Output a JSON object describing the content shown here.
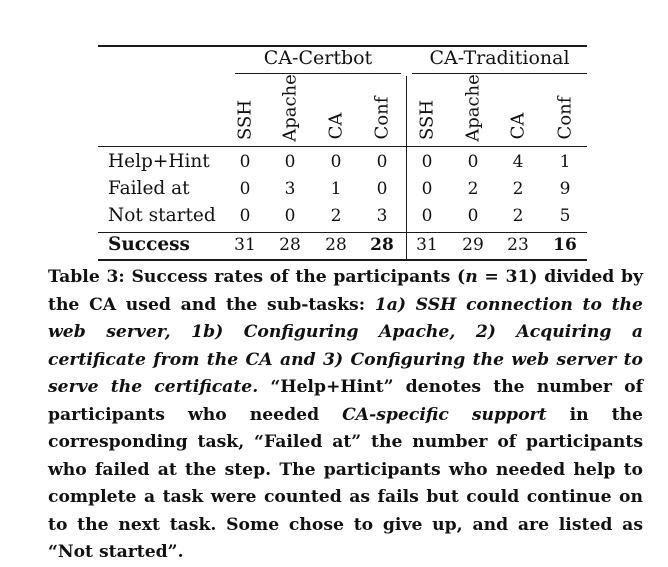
{
  "table": {
    "group_headers": [
      "CA-Certbot",
      "CA-Traditional"
    ],
    "columns": [
      "SSH",
      "Apache",
      "CA",
      "Conf",
      "SSH",
      "Apache",
      "CA",
      "Conf"
    ],
    "rows": [
      {
        "label": "Help+Hint",
        "values": [
          "0",
          "0",
          "0",
          "0",
          "0",
          "0",
          "4",
          "1"
        ]
      },
      {
        "label": "Failed at",
        "values": [
          "0",
          "3",
          "1",
          "0",
          "0",
          "2",
          "2",
          "9"
        ]
      },
      {
        "label": "Not started",
        "values": [
          "0",
          "0",
          "2",
          "3",
          "0",
          "0",
          "2",
          "5"
        ]
      }
    ],
    "total_row": {
      "label": "Success",
      "values": [
        "31",
        "28",
        "28",
        "28",
        "31",
        "29",
        "23",
        "16"
      ]
    }
  },
  "caption": {
    "lead": "Table 3: Success rates of the participants (",
    "n_symbol": "n",
    "n_rest": " = 31) divided by the CA used and the sub-tasks: ",
    "subtasks": "1a) SSH connection to the web server, 1b) Configuring Apache, 2) Acquiring a certificate from the CA and 3) Configuring the web server to serve the certificate.",
    "part1": " “Help+Hint” denotes the number of participants who needed ",
    "support": "CA-specific support",
    "part2": " in the corresponding task, “Failed at” the number of participants who failed at the step. The participants who needed help to complete a task were counted as fails but could continue on to the next task. Some chose to give up, and are listed as “Not started”."
  }
}
